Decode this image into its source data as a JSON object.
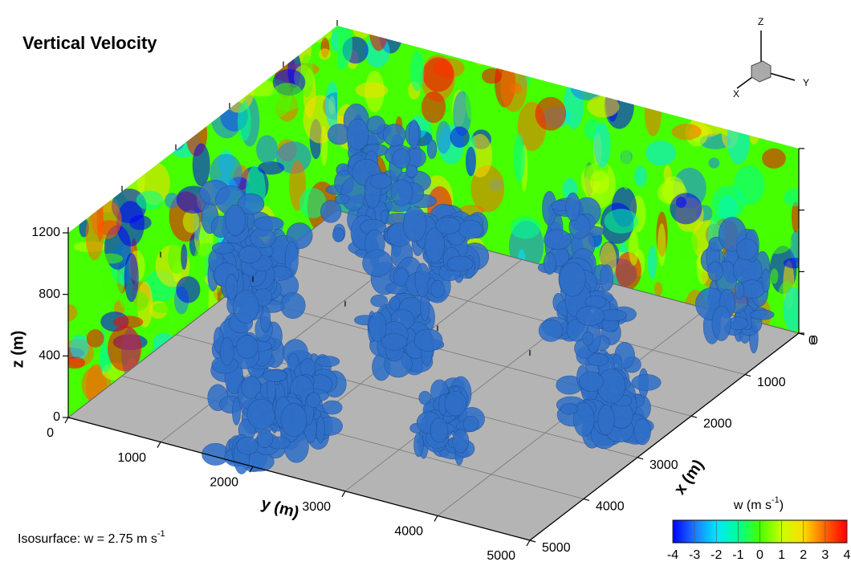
{
  "chart_data": {
    "type": "volume3d",
    "title": "Vertical Velocity",
    "annotation": {
      "text": "Isosurface: w = 2.75 m s",
      "sup": "-1"
    },
    "xlabel": "x (m)",
    "ylabel": "y (m)",
    "zlabel": "z (m)",
    "xlim": [
      0,
      5000
    ],
    "xticks": [
      0,
      1000,
      2000,
      3000,
      4000,
      5000
    ],
    "ylim": [
      0,
      5000
    ],
    "yticks": [
      0,
      1000,
      2000,
      3000,
      4000,
      5000
    ],
    "zlim": [
      0,
      1200
    ],
    "zticks": [
      0,
      400,
      800,
      1200
    ],
    "floor_color": "#b4b4b4",
    "isosurface_color": "#2f6fc8",
    "orientation_axes": [
      "X",
      "Y",
      "Z"
    ],
    "colorbar": {
      "label": "w (m s",
      "label_sup": "-1",
      "label_end": ")",
      "lim": [
        -4,
        4
      ],
      "ticks": [
        -4,
        -3,
        -2,
        -1,
        0,
        1,
        2,
        3,
        4
      ],
      "colors": [
        "#0000ff",
        "#1e78ff",
        "#00e6ff",
        "#00ff96",
        "#46ff00",
        "#c8ff00",
        "#ffdc00",
        "#ff6400",
        "#ff0000"
      ]
    }
  }
}
